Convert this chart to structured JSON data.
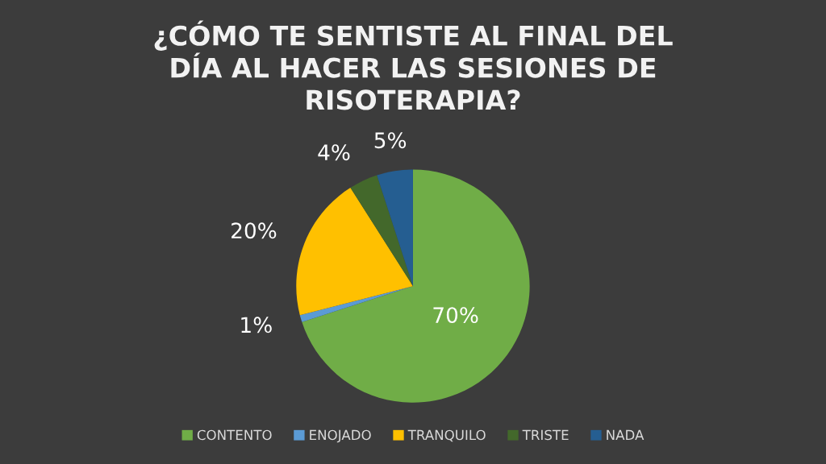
{
  "chart_data": {
    "type": "pie",
    "title": "¿CÓMO TE SENTISTE AL FINAL DEL DÍA AL HACER LAS SESIONES DE RISOTERAPIA?",
    "categories": [
      "CONTENTO",
      "ENOJADO",
      "TRANQUILO",
      "TRISTE",
      "NADA"
    ],
    "values": [
      70,
      1,
      20,
      4,
      5
    ],
    "colors": [
      "#70ad47",
      "#5b9bd5",
      "#ffc000",
      "#43682b",
      "#255e91"
    ],
    "value_labels": [
      "70%",
      "1%",
      "20%",
      "4%",
      "5%"
    ],
    "legend": "bottom"
  }
}
